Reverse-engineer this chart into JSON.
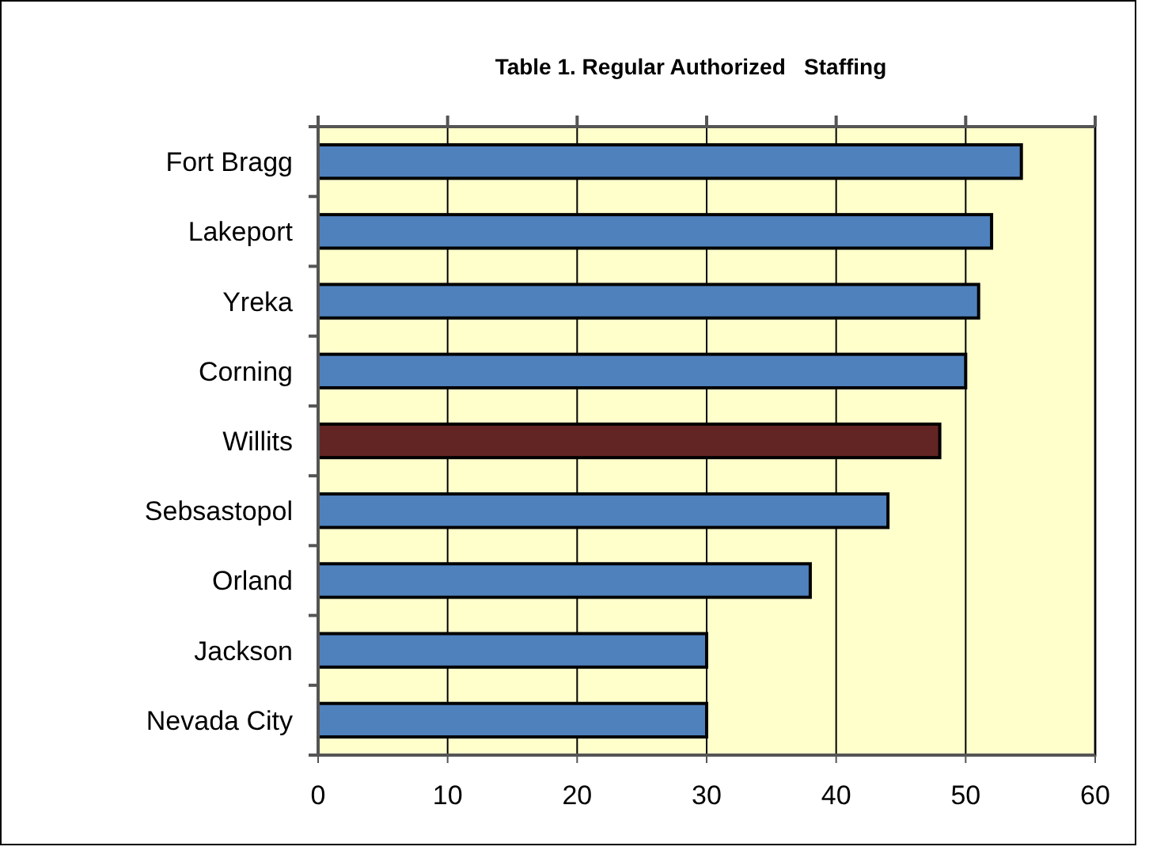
{
  "chart_data": {
    "type": "bar",
    "orientation": "horizontal",
    "title": "Table 1. Regular Authorized   Staffing",
    "categories": [
      "Fort Bragg",
      "Lakeport",
      "Yreka",
      "Corning",
      "Willits",
      "Sebsastopol",
      "Orland",
      "Jackson",
      "Nevada City"
    ],
    "values": [
      54.3,
      52,
      51,
      50,
      48,
      44,
      38,
      30,
      30
    ],
    "colors": [
      "#4f81bd",
      "#4f81bd",
      "#4f81bd",
      "#4f81bd",
      "#632523",
      "#4f81bd",
      "#4f81bd",
      "#4f81bd",
      "#4f81bd"
    ],
    "xlim": [
      0,
      60
    ],
    "xticks": [
      0,
      10,
      20,
      30,
      40,
      50,
      60
    ],
    "grid": "x"
  }
}
